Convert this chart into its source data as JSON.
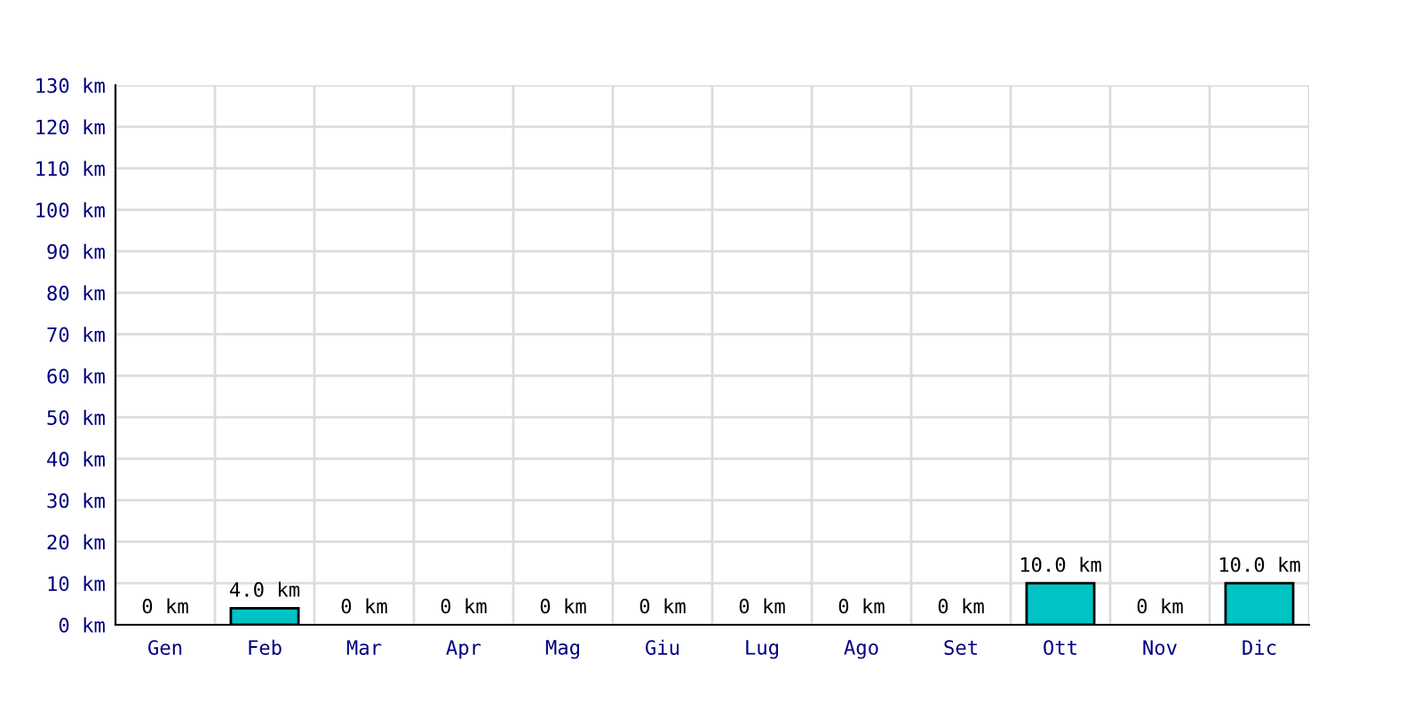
{
  "chart_data": {
    "type": "bar",
    "categories": [
      "Gen",
      "Feb",
      "Mar",
      "Apr",
      "Mag",
      "Giu",
      "Lug",
      "Ago",
      "Set",
      "Ott",
      "Nov",
      "Dic"
    ],
    "values": [
      0,
      4,
      0,
      0,
      0,
      0,
      0,
      0,
      0,
      10,
      0,
      10
    ],
    "value_labels": [
      "0 km",
      "4.0 km",
      "0 km",
      "0 km",
      "0 km",
      "0 km",
      "0 km",
      "0 km",
      "0 km",
      "10.0 km",
      "0 km",
      "10.0 km"
    ],
    "color": "#00c4c4",
    "ylim": [
      0,
      130
    ],
    "yticks": [
      {
        "value": 0,
        "label": "0 km"
      },
      {
        "value": 10,
        "label": "10 km"
      },
      {
        "value": 20,
        "label": "20 km"
      },
      {
        "value": 30,
        "label": "30 km"
      },
      {
        "value": 40,
        "label": "40 km"
      },
      {
        "value": 50,
        "label": "50 km"
      },
      {
        "value": 60,
        "label": "60 km"
      },
      {
        "value": 70,
        "label": "70 km"
      },
      {
        "value": 80,
        "label": "80 km"
      },
      {
        "value": 90,
        "label": "90 km"
      },
      {
        "value": 100,
        "label": "100 km"
      },
      {
        "value": 110,
        "label": "110 km"
      },
      {
        "value": 120,
        "label": "120 km"
      },
      {
        "value": 130,
        "label": "130 km"
      }
    ],
    "grid": true
  }
}
